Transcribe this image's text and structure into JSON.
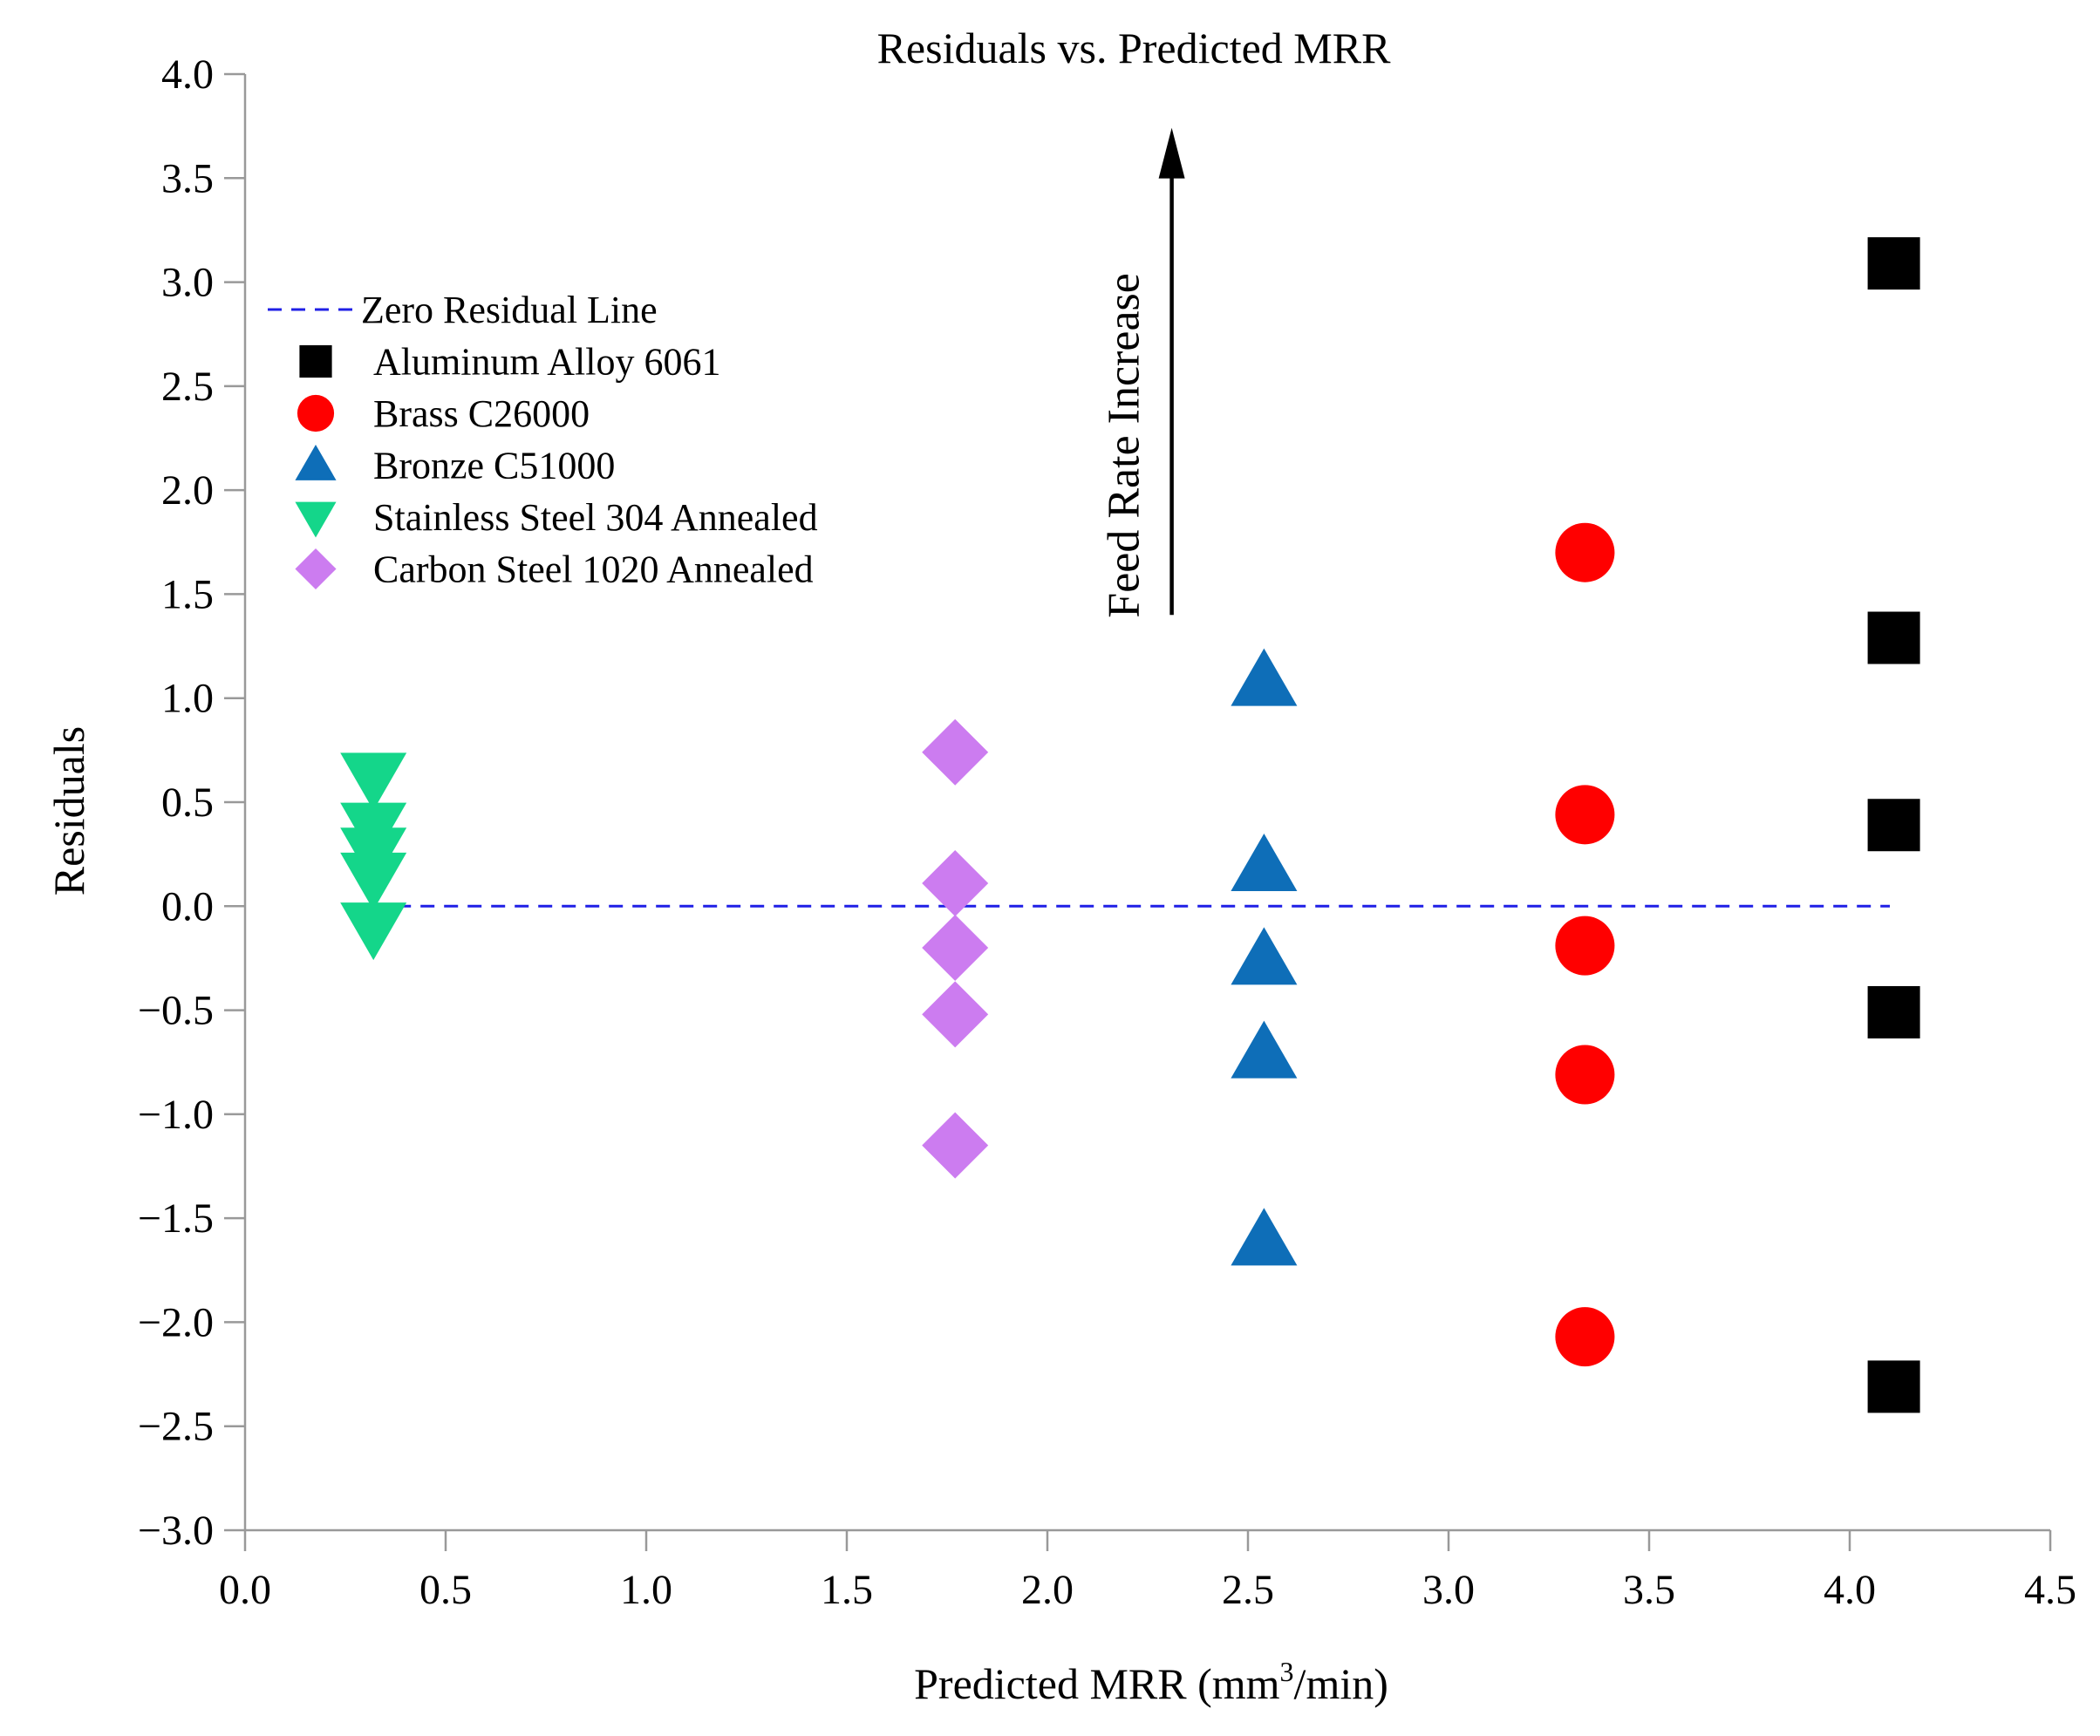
{
  "chart_data": {
    "type": "scatter",
    "title": "Residuals vs. Predicted MRR",
    "xlabel_main": "Predicted MRR (mm",
    "xlabel_sup": "3",
    "xlabel_tail": "/min)",
    "ylabel": "Residuals",
    "xlim": [
      0,
      4.5
    ],
    "ylim": [
      -3,
      4
    ],
    "x_ticks": [
      {
        "value": 0.0,
        "label": "0.0"
      },
      {
        "value": 0.5,
        "label": "0.5"
      },
      {
        "value": 1.0,
        "label": "1.0"
      },
      {
        "value": 1.5,
        "label": "1.5"
      },
      {
        "value": 2.0,
        "label": "2.0"
      },
      {
        "value": 2.5,
        "label": "2.5"
      },
      {
        "value": 3.0,
        "label": "3.0"
      },
      {
        "value": 3.5,
        "label": "3.5"
      },
      {
        "value": 4.0,
        "label": "4.0"
      },
      {
        "value": 4.5,
        "label": "4.5"
      }
    ],
    "y_ticks": [
      {
        "value": 4.0,
        "label": "4.0"
      },
      {
        "value": 3.5,
        "label": "3.5"
      },
      {
        "value": 3.0,
        "label": "3.0"
      },
      {
        "value": 2.5,
        "label": "2.5"
      },
      {
        "value": 2.0,
        "label": "2.0"
      },
      {
        "value": 1.5,
        "label": "1.5"
      },
      {
        "value": 1.0,
        "label": "1.0"
      },
      {
        "value": 0.5,
        "label": "0.5"
      },
      {
        "value": 0.0,
        "label": "0.0"
      },
      {
        "value": -0.5,
        "label": "−0.5"
      },
      {
        "value": -1.0,
        "label": "−1.0"
      },
      {
        "value": -1.5,
        "label": "−1.5"
      },
      {
        "value": -2.0,
        "label": "−2.0"
      },
      {
        "value": -2.5,
        "label": "−2.5"
      },
      {
        "value": -3.0,
        "label": "−3.0"
      }
    ],
    "grid": false,
    "legend_position": "top-left",
    "zero_line": {
      "name": "Zero Residual Line",
      "y": 0,
      "x_range": [
        0.32,
        4.1
      ],
      "color": "#1f1fe6",
      "style": "dashed"
    },
    "series": [
      {
        "name": "Aluminum Alloy 6061",
        "marker": "square",
        "color": "#000000",
        "points": [
          [
            4.11,
            3.09
          ],
          [
            4.11,
            1.29
          ],
          [
            4.11,
            0.39
          ],
          [
            4.11,
            -0.51
          ],
          [
            4.11,
            -2.31
          ]
        ]
      },
      {
        "name": "Brass C26000",
        "marker": "circle",
        "color": "#ff0000",
        "points": [
          [
            3.34,
            1.7
          ],
          [
            3.34,
            0.44
          ],
          [
            3.34,
            -0.19
          ],
          [
            3.34,
            -0.81
          ],
          [
            3.34,
            -2.07
          ]
        ]
      },
      {
        "name": "Bronze C51000",
        "marker": "triangle-up",
        "color": "#0e6eb8",
        "points": [
          [
            2.54,
            1.08
          ],
          [
            2.54,
            0.19
          ],
          [
            2.54,
            -0.26
          ],
          [
            2.54,
            -0.71
          ],
          [
            2.54,
            -1.61
          ]
        ]
      },
      {
        "name": "Stainless Steel 304 Annealed",
        "marker": "triangle-down",
        "color": "#14d68a",
        "points": [
          [
            0.32,
            0.62
          ],
          [
            0.32,
            0.38
          ],
          [
            0.32,
            0.26
          ],
          [
            0.32,
            0.14
          ],
          [
            0.32,
            -0.1
          ]
        ]
      },
      {
        "name": "Carbon Steel 1020 Annealed",
        "marker": "diamond",
        "color": "#cc7cf0",
        "points": [
          [
            1.77,
            0.74
          ],
          [
            1.77,
            0.11
          ],
          [
            1.77,
            -0.2
          ],
          [
            1.77,
            -0.52
          ],
          [
            1.77,
            -1.15
          ]
        ]
      }
    ],
    "annotation": {
      "text": "Feed Rate Increase",
      "arrow_x": 2.31,
      "arrow_from_y": 1.4,
      "arrow_to_y": 3.7
    }
  }
}
